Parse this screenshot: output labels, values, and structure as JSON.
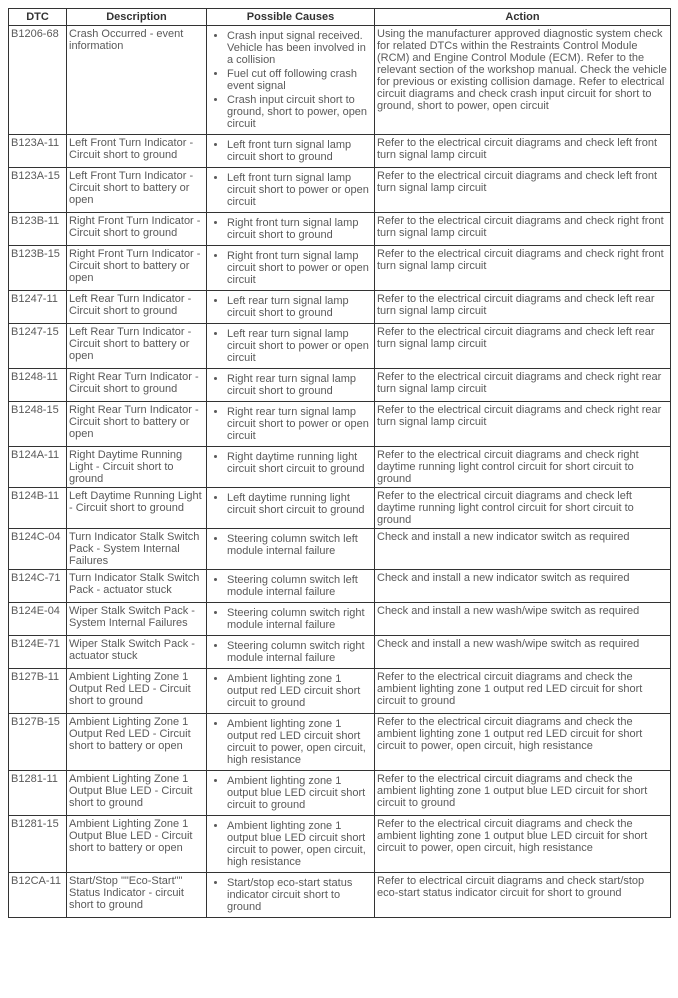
{
  "headers": [
    "DTC",
    "Description",
    "Possible Causes",
    "Action"
  ],
  "rows": [
    {
      "dtc": "B1206-68",
      "desc": "Crash Occurred - event information",
      "causes": [
        "Crash input signal received. Vehicle has been involved in a collision",
        "Fuel cut off following crash event signal",
        "Crash input circuit short to ground, short to power, open circuit"
      ],
      "action": "Using the manufacturer approved diagnostic system check for related DTCs within the Restraints Control Module (RCM) and Engine Control Module (ECM). Refer to the relevant section of the workshop manual. Check the vehicle for previous or existing collision damage. Refer to electrical circuit diagrams and check crash input circuit for short to ground, short to power, open circuit"
    },
    {
      "dtc": "B123A-11",
      "desc": "Left Front Turn Indicator - Circuit short to ground",
      "causes": [
        "Left front turn signal lamp circuit short to ground"
      ],
      "action": "Refer to the electrical circuit diagrams and check left front turn signal lamp circuit"
    },
    {
      "dtc": "B123A-15",
      "desc": "Left Front Turn Indicator - Circuit short to battery or open",
      "causes": [
        "Left front turn signal lamp circuit short to power or open circuit"
      ],
      "action": "Refer to the electrical circuit diagrams and check left front turn signal lamp circuit"
    },
    {
      "dtc": "B123B-11",
      "desc": "Right Front Turn Indicator - Circuit short to ground",
      "causes": [
        "Right front turn signal lamp circuit short to ground"
      ],
      "action": "Refer to the electrical circuit diagrams and check right front turn signal lamp circuit"
    },
    {
      "dtc": "B123B-15",
      "desc": "Right Front Turn Indicator - Circuit short to battery or open",
      "causes": [
        "Right front turn signal lamp circuit short to power or open circuit"
      ],
      "action": "Refer to the electrical circuit diagrams and check right front turn signal lamp circuit"
    },
    {
      "dtc": "B1247-11",
      "desc": "Left Rear Turn Indicator - Circuit short to ground",
      "causes": [
        "Left rear turn signal lamp circuit short to ground"
      ],
      "action": "Refer to the electrical circuit diagrams and check left rear turn signal lamp circuit"
    },
    {
      "dtc": "B1247-15",
      "desc": "Left Rear Turn Indicator - Circuit short to battery or open",
      "causes": [
        "Left rear turn signal lamp circuit short to power or open circuit"
      ],
      "action": "Refer to the electrical circuit diagrams and check left rear turn signal lamp circuit"
    },
    {
      "dtc": "B1248-11",
      "desc": "Right Rear Turn Indicator - Circuit short to ground",
      "causes": [
        "Right rear turn signal lamp circuit short to ground"
      ],
      "action": "Refer to the electrical circuit diagrams and check right rear turn signal lamp circuit"
    },
    {
      "dtc": "B1248-15",
      "desc": "Right Rear Turn Indicator - Circuit short to battery or open",
      "causes": [
        "Right rear turn signal lamp circuit short to power or open circuit"
      ],
      "action": "Refer to the electrical circuit diagrams and check right rear turn signal lamp circuit"
    },
    {
      "dtc": "B124A-11",
      "desc": "Right Daytime Running Light - Circuit short to ground",
      "causes": [
        "Right daytime running light circuit short circuit to ground"
      ],
      "action": "Refer to the electrical circuit diagrams and check right daytime running light control circuit for short circuit to ground"
    },
    {
      "dtc": "B124B-11",
      "desc": "Left Daytime Running Light - Circuit short to ground",
      "causes": [
        "Left daytime running light circuit short circuit to ground"
      ],
      "action": "Refer to the electrical circuit diagrams and check left daytime running light control circuit for short circuit to ground"
    },
    {
      "dtc": "B124C-04",
      "desc": "Turn Indicator Stalk Switch Pack - System Internal Failures",
      "causes": [
        "Steering column switch left module internal failure"
      ],
      "action": "Check and install a new indicator switch as required"
    },
    {
      "dtc": "B124C-71",
      "desc": "Turn Indicator Stalk Switch Pack - actuator stuck",
      "causes": [
        "Steering column switch left module internal failure"
      ],
      "action": "Check and install a new indicator switch as required"
    },
    {
      "dtc": "B124E-04",
      "desc": "Wiper Stalk Switch Pack - System Internal Failures",
      "causes": [
        "Steering column switch right module internal failure"
      ],
      "action": "Check and install a new wash/wipe switch as required"
    },
    {
      "dtc": "B124E-71",
      "desc": "Wiper Stalk Switch Pack - actuator stuck",
      "causes": [
        "Steering column switch right module internal failure"
      ],
      "action": "Check and install a new wash/wipe switch as required"
    },
    {
      "dtc": "B127B-11",
      "desc": "Ambient Lighting Zone 1 Output Red LED - Circuit short to ground",
      "causes": [
        "Ambient lighting zone 1 output red LED circuit short circuit to ground"
      ],
      "action": "Refer to the electrical circuit diagrams and check the ambient lighting zone 1 output red LED circuit for short circuit to ground"
    },
    {
      "dtc": "B127B-15",
      "desc": "Ambient Lighting Zone 1 Output Red LED - Circuit short to battery or open",
      "causes": [
        "Ambient lighting zone 1 output red LED circuit short circuit to power, open circuit, high resistance"
      ],
      "action": "Refer to the electrical circuit diagrams and check the ambient lighting zone 1 output red LED circuit for short circuit to power, open circuit, high resistance"
    },
    {
      "dtc": "B1281-11",
      "desc": "Ambient Lighting Zone 1 Output Blue LED - Circuit short to ground",
      "causes": [
        "Ambient lighting zone 1 output blue LED circuit short circuit to ground"
      ],
      "action": "Refer to the electrical circuit diagrams and check the ambient lighting zone 1 output blue LED circuit for short circuit to ground"
    },
    {
      "dtc": "B1281-15",
      "desc": "Ambient Lighting Zone 1 Output Blue LED - Circuit short to battery or open",
      "causes": [
        "Ambient lighting zone 1 output blue LED circuit short circuit to power, open circuit, high resistance"
      ],
      "action": "Refer to the electrical circuit diagrams and check the ambient lighting zone 1 output blue LED circuit for short circuit to power, open circuit, high resistance"
    },
    {
      "dtc": "B12CA-11",
      "desc": "Start/Stop \"\"Eco-Start\"\" Status Indicator - circuit short to ground",
      "causes": [
        "Start/stop eco-start status indicator circuit short to ground"
      ],
      "action": "Refer to electrical circuit diagrams and check start/stop eco-start status indicator circuit for short to ground"
    }
  ]
}
